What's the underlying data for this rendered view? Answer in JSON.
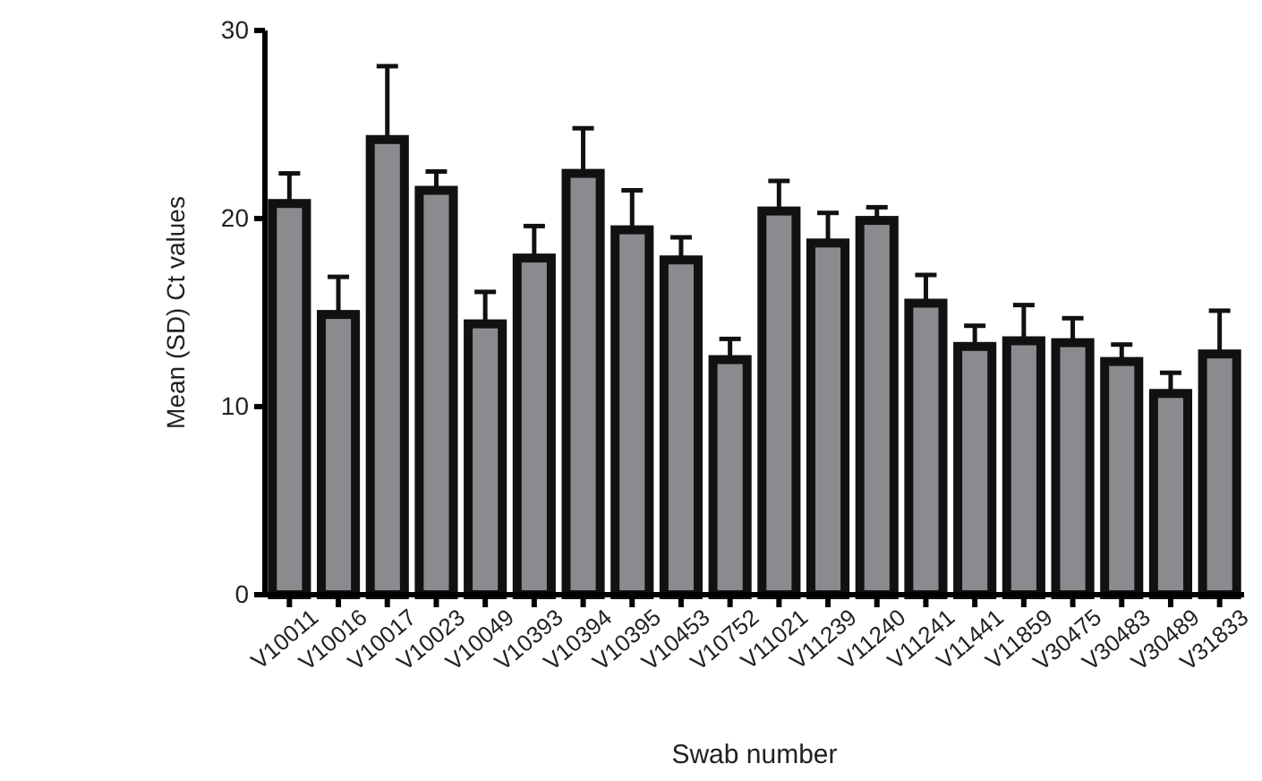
{
  "chart_data": {
    "type": "bar",
    "xlabel": "Swab number",
    "ylabel": "Mean (SD) Ct values",
    "categories": [
      "V10011",
      "V10016",
      "V10017",
      "V10023",
      "V10049",
      "V10393",
      "V10394",
      "V10395",
      "V10453",
      "V10752",
      "V11021",
      "V11239",
      "V11240",
      "V11241",
      "V11441",
      "V11859",
      "V30475",
      "V30483",
      "V30489",
      "V31833"
    ],
    "values": [
      20.8,
      14.9,
      24.2,
      21.5,
      14.4,
      17.9,
      22.4,
      19.4,
      17.8,
      12.5,
      20.4,
      18.7,
      19.9,
      15.5,
      13.2,
      13.5,
      13.4,
      12.4,
      10.7,
      12.8
    ],
    "errors": [
      [
        20.8,
        22.4
      ],
      [
        14.9,
        16.9
      ],
      [
        24.2,
        28.1
      ],
      [
        21.5,
        22.5
      ],
      [
        14.4,
        16.1
      ],
      [
        17.9,
        19.6
      ],
      [
        22.4,
        24.8
      ],
      [
        19.4,
        21.5
      ],
      [
        17.8,
        19.0
      ],
      [
        12.5,
        13.6
      ],
      [
        20.4,
        22.0
      ],
      [
        18.7,
        20.3
      ],
      [
        19.9,
        20.6
      ],
      [
        15.5,
        17.0
      ],
      [
        13.2,
        14.3
      ],
      [
        13.5,
        15.4
      ],
      [
        13.4,
        14.7
      ],
      [
        12.4,
        13.3
      ],
      [
        10.7,
        11.8
      ],
      [
        12.8,
        15.1
      ]
    ],
    "color": "#8c8a8e",
    "ylim": [
      0,
      30
    ],
    "yticks": [
      0,
      10,
      20,
      30
    ],
    "grid": false
  }
}
